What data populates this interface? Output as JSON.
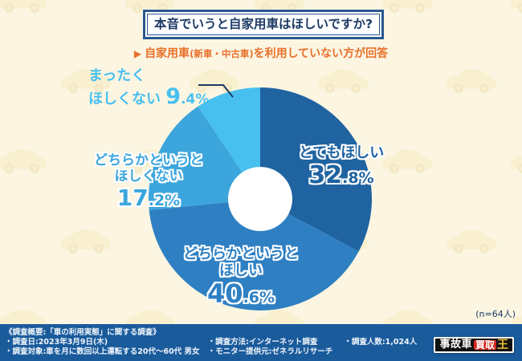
{
  "header": {
    "title": "本音でいうと自家用車はほしいですか?",
    "arrow": "▶",
    "subtitle_prefix": "自家用車",
    "subtitle_small": "(新車・中古車)",
    "subtitle_suffix": "を利用していない方が回答",
    "accent_color": "#E8702A",
    "title_color": "#1E3A66"
  },
  "chart_data": {
    "type": "pie",
    "donut": true,
    "start_angle_deg": 0,
    "direction": "clockwise",
    "unit": "%",
    "title": "本音でいうと自家用車はほしいですか?",
    "subtitle": "自家用車(新車・中古車)を利用していない方が回答",
    "categories": [
      "とてもほしい",
      "どちらかというとほしい",
      "どちらかというとほしくない",
      "まったくほしくない"
    ],
    "values": [
      32.8,
      40.6,
      17.2,
      9.4
    ],
    "colors": [
      "#1F63A1",
      "#2E80C3",
      "#3CA5DC",
      "#47C0F0"
    ],
    "label_lines": [
      [
        "とてもほしい"
      ],
      [
        "どちらかというと",
        "ほしい"
      ],
      [
        "どちらかというと",
        "ほしくない"
      ],
      [
        "まったく",
        "ほしくない"
      ]
    ],
    "hole_color": "#FFFFFF",
    "n_note": "(n=64人)"
  },
  "footnote": "(n=64人)",
  "footer": {
    "bg_color": "#1A5B9C",
    "heading": "《調査概要:「車の利用実態」に関する調査》",
    "col1": [
      "・調査日:2023年3月9日(木)",
      "・調査対象:車を月に数回以上運転する20代〜60代 男女"
    ],
    "col2": [
      "・調査方法:インターネット調査",
      "・モニター提供元:ゼネラルリサーチ"
    ],
    "col3": [
      "・調査人数:1,024人"
    ],
    "logo": {
      "black_part": "事故車",
      "red_part": "買取",
      "gold_part": "王"
    }
  }
}
